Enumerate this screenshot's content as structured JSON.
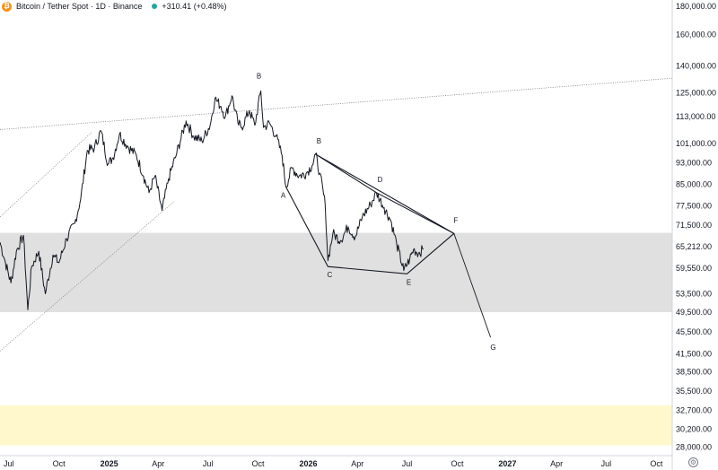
{
  "header": {
    "symbol_title": "Bitcoin / Tether Spot · 1D · Binance",
    "price_change": "+310.41 (+0.48%)",
    "coin_icon": "bitcoin-icon"
  },
  "colors": {
    "price_line": "#131722",
    "gray_zone": "#e0e0e0",
    "yellow_zone": "#fff8cc",
    "trend_line": "#787b86"
  },
  "chart_data": {
    "type": "line",
    "title": "Bitcoin / Tether Spot · 1D · Binance",
    "scale": "log",
    "ylim": [
      27000,
      185000
    ],
    "xlim": [
      "2024-06-15",
      "2027-10-30"
    ],
    "y_ticks": [
      "180,000.00",
      "160,000.00",
      "140,000.00",
      "125,000.00",
      "113,000.00",
      "101,000.00",
      "93,000.00",
      "85,000.00",
      "77,500.00",
      "71,500.00",
      "65,212.00",
      "59,550.00",
      "53,500.00",
      "49,500.00",
      "45,500.00",
      "41,500.00",
      "38,500.00",
      "35,500.00",
      "32,700.00",
      "30,200.00",
      "28,000.00"
    ],
    "x_ticks": [
      {
        "label": "Jul",
        "date": "2024-07-01"
      },
      {
        "label": "Oct",
        "date": "2024-10-01"
      },
      {
        "label": "2025",
        "date": "2025-01-01"
      },
      {
        "label": "Apr",
        "date": "2025-04-01"
      },
      {
        "label": "Jul",
        "date": "2025-07-01"
      },
      {
        "label": "Oct",
        "date": "2025-10-01"
      },
      {
        "label": "2026",
        "date": "2026-01-01"
      },
      {
        "label": "Apr",
        "date": "2026-04-01"
      },
      {
        "label": "Jul",
        "date": "2026-07-01"
      },
      {
        "label": "Oct",
        "date": "2026-10-01"
      },
      {
        "label": "2027",
        "date": "2027-01-01"
      },
      {
        "label": "Apr",
        "date": "2027-04-01"
      },
      {
        "label": "Jul",
        "date": "2027-07-01"
      },
      {
        "label": "Oct",
        "date": "2027-10-01"
      }
    ],
    "series": [
      {
        "values": [
          [
            "2024-06-15",
            66500
          ],
          [
            "2024-06-25",
            61000
          ],
          [
            "2024-07-05",
            56000
          ],
          [
            "2024-07-15",
            64000
          ],
          [
            "2024-07-28",
            68500
          ],
          [
            "2024-08-05",
            50000
          ],
          [
            "2024-08-12",
            60000
          ],
          [
            "2024-08-25",
            64000
          ],
          [
            "2024-09-06",
            53500
          ],
          [
            "2024-09-20",
            63000
          ],
          [
            "2024-10-01",
            61000
          ],
          [
            "2024-10-15",
            67500
          ],
          [
            "2024-10-30",
            72000
          ],
          [
            "2024-11-10",
            80000
          ],
          [
            "2024-11-22",
            98000
          ],
          [
            "2024-12-05",
            99000
          ],
          [
            "2024-12-17",
            106500
          ],
          [
            "2024-12-30",
            92500
          ],
          [
            "2025-01-08",
            95000
          ],
          [
            "2025-01-20",
            105000
          ],
          [
            "2025-02-03",
            100000
          ],
          [
            "2025-02-20",
            96000
          ],
          [
            "2025-03-05",
            88000
          ],
          [
            "2025-03-15",
            82000
          ],
          [
            "2025-03-26",
            88000
          ],
          [
            "2025-04-08",
            76000
          ],
          [
            "2025-04-20",
            87000
          ],
          [
            "2025-05-05",
            97000
          ],
          [
            "2025-05-22",
            111000
          ],
          [
            "2025-06-05",
            104000
          ],
          [
            "2025-06-20",
            102000
          ],
          [
            "2025-07-05",
            109000
          ],
          [
            "2025-07-14",
            122000
          ],
          [
            "2025-07-25",
            118000
          ],
          [
            "2025-08-02",
            113000
          ],
          [
            "2025-08-14",
            123500
          ],
          [
            "2025-08-25",
            110000
          ],
          [
            "2025-09-01",
            108000
          ],
          [
            "2025-09-15",
            116000
          ],
          [
            "2025-09-25",
            109000
          ],
          [
            "2025-10-06",
            126000
          ],
          [
            "2025-10-11",
            108000
          ],
          [
            "2025-10-22",
            110000
          ],
          [
            "2025-11-03",
            104000
          ],
          [
            "2025-11-14",
            96000
          ],
          [
            "2025-11-21",
            84000
          ],
          [
            "2025-12-02",
            91000
          ],
          [
            "2025-12-15",
            88000
          ],
          [
            "2025-12-28",
            89000
          ],
          [
            "2026-01-08",
            92000
          ],
          [
            "2026-01-14",
            96500
          ],
          [
            "2026-01-22",
            89000
          ],
          [
            "2026-02-01",
            78000
          ],
          [
            "2026-02-06",
            61500
          ],
          [
            "2026-02-15",
            69000
          ],
          [
            "2026-03-01",
            67000
          ],
          [
            "2026-03-15",
            71000
          ],
          [
            "2026-03-28",
            68000
          ],
          [
            "2026-04-10",
            74000
          ],
          [
            "2026-04-25",
            78000
          ],
          [
            "2026-05-06",
            82000
          ],
          [
            "2026-05-20",
            77000
          ],
          [
            "2026-06-01",
            73000
          ],
          [
            "2026-06-12",
            66000
          ],
          [
            "2026-06-25",
            59000
          ],
          [
            "2026-07-06",
            62000
          ],
          [
            "2026-07-13",
            64500
          ],
          [
            "2026-07-22",
            63500
          ],
          [
            "2026-07-31",
            64500
          ]
        ]
      }
    ],
    "annotations": {
      "wave_points": [
        {
          "label": "B",
          "date": "2025-10-06",
          "value": 126000,
          "dx": -2,
          "dy": -14
        },
        {
          "label": "A",
          "date": "2025-11-21",
          "value": 84000,
          "dx": -3,
          "dy": 12
        },
        {
          "label": "B",
          "date": "2026-01-14",
          "value": 96500,
          "dx": 4,
          "dy": -12
        },
        {
          "label": "C",
          "date": "2026-02-06",
          "value": 60000,
          "dx": 2,
          "dy": 12
        },
        {
          "label": "D",
          "date": "2026-05-06",
          "value": 82000,
          "dx": 4,
          "dy": -12
        },
        {
          "label": "E",
          "date": "2026-07-01",
          "value": 58200,
          "dx": 2,
          "dy": 12
        },
        {
          "label": "F",
          "date": "2026-09-25",
          "value": 69000,
          "dx": 2,
          "dy": -12
        },
        {
          "label": "G",
          "date": "2026-12-01",
          "value": 44500,
          "dx": 3,
          "dy": 14
        }
      ],
      "triangle_lines": [
        [
          [
            "2025-11-21",
            84000
          ],
          [
            "2026-02-06",
            60000
          ],
          [
            "2026-07-01",
            58200
          ],
          [
            "2026-09-25",
            69000
          ],
          [
            "2026-05-06",
            82000
          ],
          [
            "2026-01-14",
            96500
          ]
        ],
        [
          [
            "2026-01-14",
            96500
          ],
          [
            "2026-09-25",
            69000
          ]
        ],
        [
          [
            "2026-09-25",
            69000
          ],
          [
            "2026-12-01",
            44500
          ]
        ]
      ],
      "dotted_trendlines": [
        [
          [
            "2024-06-15",
            107000
          ],
          [
            "2027-11-01",
            133000
          ]
        ]
      ],
      "dotted_channel": [
        [
          [
            "2024-06-15",
            74000
          ],
          [
            "2024-12-01",
            106000
          ]
        ],
        [
          [
            "2024-06-15",
            42000
          ],
          [
            "2025-04-30",
            79000
          ]
        ]
      ],
      "zones": [
        {
          "from": 49500,
          "to": 69200
        },
        {
          "from": 28200,
          "to": 33400
        }
      ]
    }
  }
}
